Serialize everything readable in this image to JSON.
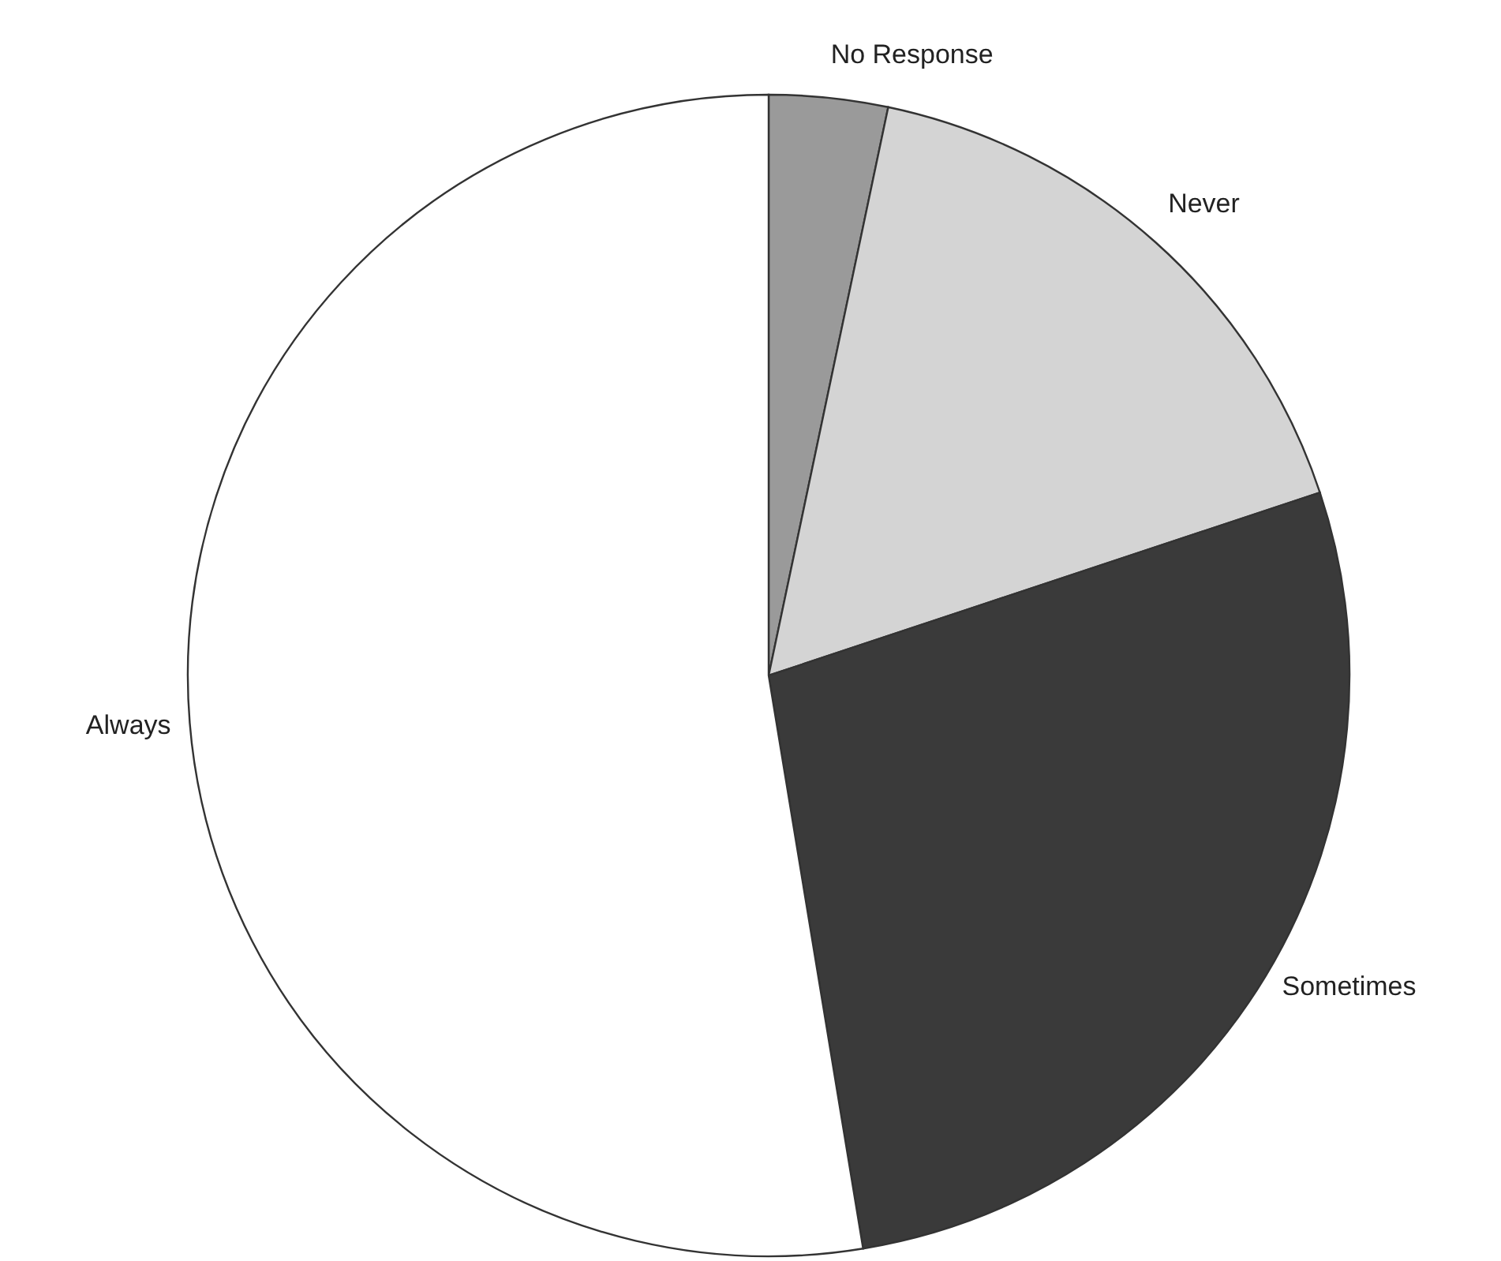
{
  "chart_data": {
    "type": "pie",
    "categories": [
      "No Response",
      "Never",
      "Sometimes",
      "Always"
    ],
    "values": [
      3.3,
      16.6,
      27.5,
      52.6
    ],
    "colors": [
      "#9a9a9a",
      "#d4d4d4",
      "#3a3a3a",
      "#ffffff"
    ],
    "legend": false
  }
}
